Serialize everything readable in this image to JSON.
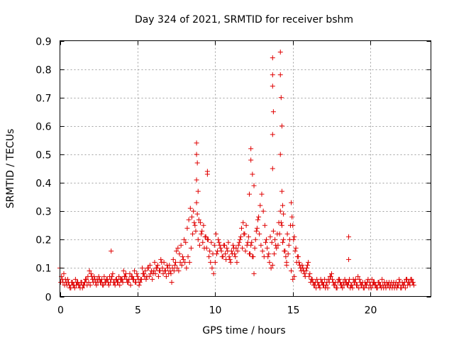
{
  "chart_data": {
    "type": "scatter",
    "title": "Day 324 of 2021, SRMTID for receiver bshm",
    "xlabel": "GPS time / hours",
    "ylabel": "SRMTID / TECUs",
    "xlim": [
      0,
      23.9
    ],
    "ylim": [
      0,
      0.9
    ],
    "xticks": [
      0,
      5,
      10,
      15,
      20
    ],
    "xtick_labels": [
      "0",
      "5",
      "10",
      "15",
      "20"
    ],
    "yticks": [
      0,
      0.1,
      0.2,
      0.3,
      0.4,
      0.5,
      0.6,
      0.7,
      0.8,
      0.9
    ],
    "ytick_labels": [
      "0",
      "0.1",
      "0.2",
      "0.3",
      "0.4",
      "0.5",
      "0.6",
      "0.7",
      "0.8",
      "0.9"
    ],
    "grid": true,
    "marker": "+",
    "color": "#e00000",
    "series": [
      {
        "name": "SRMTID",
        "x": [
          0.0,
          0.1,
          0.2,
          0.3,
          0.4,
          0.5,
          0.6,
          0.7,
          0.8,
          0.9,
          1.0,
          1.1,
          1.2,
          1.3,
          1.4,
          1.5,
          1.6,
          1.7,
          1.8,
          1.9,
          2.0,
          2.1,
          2.2,
          2.3,
          2.4,
          2.5,
          2.6,
          2.7,
          2.8,
          2.9,
          3.0,
          3.1,
          3.2,
          3.3,
          3.4,
          3.5,
          3.6,
          3.7,
          3.8,
          3.9,
          4.0,
          4.1,
          4.2,
          4.3,
          4.4,
          4.5,
          4.6,
          4.7,
          4.8,
          4.9,
          5.0,
          5.1,
          5.2,
          5.3,
          5.4,
          5.5,
          5.6,
          5.7,
          5.8,
          5.9,
          6.0,
          6.1,
          6.2,
          6.3,
          6.4,
          6.5,
          6.6,
          6.7,
          6.8,
          6.9,
          7.0,
          7.1,
          7.2,
          7.3,
          7.4,
          7.5,
          7.6,
          7.7,
          7.8,
          7.9,
          8.0,
          8.1,
          8.2,
          8.3,
          8.4,
          8.5,
          8.6,
          8.7,
          8.8,
          8.9,
          9.0,
          9.1,
          9.2,
          9.3,
          9.4,
          9.5,
          9.6,
          9.7,
          9.8,
          9.9,
          10.0,
          10.1,
          10.2,
          10.3,
          10.4,
          10.5,
          10.6,
          10.7,
          10.8,
          10.9,
          11.0,
          11.1,
          11.2,
          11.3,
          11.4,
          11.5,
          11.6,
          11.7,
          11.8,
          11.9,
          12.0,
          12.1,
          12.2,
          12.3,
          12.4,
          12.5,
          12.6,
          12.7,
          12.8,
          12.9,
          13.0,
          13.1,
          13.2,
          13.3,
          13.4,
          13.5,
          13.6,
          13.7,
          13.8,
          13.9,
          14.0,
          14.1,
          14.2,
          14.3,
          14.4,
          14.5,
          14.6,
          14.7,
          14.8,
          14.9,
          15.0,
          15.1,
          15.2,
          15.3,
          15.4,
          15.5,
          15.6,
          15.7,
          15.8,
          15.9,
          16.0,
          16.1,
          16.2,
          16.3,
          16.4,
          16.5,
          16.6,
          16.7,
          16.8,
          16.9,
          17.0,
          17.1,
          17.2,
          17.3,
          17.4,
          17.5,
          17.6,
          17.7,
          17.8,
          17.9,
          18.0,
          18.1,
          18.2,
          18.3,
          18.4,
          18.5,
          18.6,
          18.7,
          18.8,
          18.9,
          19.0,
          19.1,
          19.2,
          19.3,
          19.4,
          19.5,
          19.6,
          19.7,
          19.8,
          19.9,
          20.0,
          20.1,
          20.2,
          20.3,
          20.4,
          20.5,
          20.6,
          20.7,
          20.8,
          20.9,
          21.0,
          21.1,
          21.2,
          21.3,
          21.4,
          21.5,
          21.6,
          21.7,
          21.8,
          21.9,
          22.0,
          22.1,
          22.2,
          22.3,
          22.4,
          22.5,
          22.6,
          22.7,
          22.8,
          0.05,
          0.15,
          0.25,
          0.35,
          0.45,
          0.55,
          0.65,
          0.75,
          0.85,
          0.95,
          1.05,
          1.15,
          1.25,
          1.35,
          1.45,
          1.55,
          1.65,
          1.75,
          1.85,
          1.95,
          2.05,
          2.15,
          2.25,
          2.35,
          2.45,
          2.55,
          2.65,
          2.75,
          2.85,
          2.95,
          3.05,
          3.15,
          3.25,
          3.35,
          3.45,
          3.55,
          3.65,
          3.75,
          3.85,
          3.95,
          4.05,
          4.15,
          4.25,
          4.35,
          4.45,
          4.55,
          4.65,
          4.75,
          4.85,
          4.95,
          5.05,
          5.15,
          5.25,
          5.35,
          5.45,
          5.55,
          5.65,
          5.75,
          5.85,
          5.95,
          6.05,
          6.15,
          6.25,
          6.35,
          6.45,
          6.55,
          6.65,
          6.75,
          6.85,
          6.95,
          7.05,
          7.15,
          7.25,
          7.35,
          7.45,
          7.55,
          7.65,
          7.75,
          7.85,
          7.95,
          8.05,
          8.15,
          8.25,
          8.35,
          8.45,
          8.55,
          8.65,
          8.75,
          8.85,
          8.95,
          9.05,
          9.15,
          9.25,
          9.35,
          9.45,
          9.55,
          9.65,
          9.75,
          9.85,
          9.95,
          10.05,
          10.15,
          10.25,
          10.35,
          10.45,
          10.55,
          10.65,
          10.75,
          10.85,
          10.95,
          11.05,
          11.15,
          11.25,
          11.35,
          11.45,
          11.55,
          11.65,
          11.75,
          11.85,
          11.95,
          12.05,
          12.15,
          12.25,
          12.35,
          12.45,
          12.55,
          12.65,
          12.75,
          12.85,
          12.95,
          13.05,
          13.15,
          13.25,
          13.35,
          13.45,
          13.55,
          13.65,
          13.75,
          13.85,
          13.95,
          14.05,
          14.15,
          14.25,
          14.35,
          14.45,
          14.55,
          14.65,
          14.75,
          14.85,
          14.95,
          15.05,
          15.15,
          15.25,
          15.35,
          15.45,
          15.55,
          15.65,
          15.75,
          15.85,
          15.95,
          16.05,
          16.15,
          16.25,
          16.35,
          16.45,
          16.55,
          16.65,
          16.75,
          16.85,
          16.95,
          17.05,
          17.15,
          17.25,
          17.35,
          17.45,
          17.55,
          17.65,
          17.75,
          17.85,
          17.95,
          18.05,
          18.15,
          18.25,
          18.35,
          18.45,
          18.55,
          18.65,
          18.75,
          18.85,
          18.95,
          19.05,
          19.15,
          19.25,
          19.35,
          19.45,
          19.55,
          19.65,
          19.75,
          19.85,
          19.95,
          20.05,
          20.15,
          20.25,
          20.35,
          20.45,
          20.55,
          20.65,
          20.75,
          20.85,
          20.95,
          21.05,
          21.15,
          21.25,
          21.35,
          21.45,
          21.55,
          21.65,
          21.75,
          21.85,
          21.95,
          22.05,
          22.15,
          22.25,
          22.35,
          22.45,
          22.55,
          22.65,
          22.75,
          8.8,
          8.8,
          8.85,
          8.8,
          8.9,
          9.5,
          9.5,
          12.3,
          12.3,
          12.4,
          12.5,
          12.2,
          13.7,
          13.7,
          13.7,
          13.75,
          13.7,
          13.7,
          14.2,
          14.2,
          14.25,
          14.3,
          14.2,
          14.3,
          14.35,
          14.4,
          18.6,
          18.6,
          3.3,
          15.0,
          14.6,
          14.9,
          15.1
        ],
        "y": [
          0.1,
          0.07,
          0.05,
          0.04,
          0.05,
          0.06,
          0.04,
          0.03,
          0.05,
          0.04,
          0.06,
          0.05,
          0.04,
          0.03,
          0.05,
          0.04,
          0.05,
          0.06,
          0.07,
          0.09,
          0.08,
          0.06,
          0.07,
          0.05,
          0.06,
          0.07,
          0.05,
          0.06,
          0.04,
          0.05,
          0.06,
          0.05,
          0.07,
          0.06,
          0.08,
          0.05,
          0.06,
          0.05,
          0.07,
          0.06,
          0.06,
          0.09,
          0.07,
          0.06,
          0.05,
          0.08,
          0.07,
          0.06,
          0.09,
          0.05,
          0.07,
          0.04,
          0.06,
          0.1,
          0.08,
          0.09,
          0.07,
          0.1,
          0.11,
          0.09,
          0.08,
          0.12,
          0.1,
          0.11,
          0.09,
          0.13,
          0.1,
          0.12,
          0.09,
          0.11,
          0.08,
          0.09,
          0.05,
          0.13,
          0.11,
          0.16,
          0.17,
          0.15,
          0.18,
          0.14,
          0.2,
          0.19,
          0.24,
          0.27,
          0.31,
          0.28,
          0.3,
          0.25,
          0.33,
          0.2,
          0.18,
          0.22,
          0.19,
          0.17,
          0.21,
          0.2,
          0.14,
          0.12,
          0.1,
          0.08,
          0.12,
          0.15,
          0.2,
          0.18,
          0.16,
          0.14,
          0.18,
          0.13,
          0.16,
          0.14,
          0.12,
          0.15,
          0.17,
          0.14,
          0.12,
          0.18,
          0.2,
          0.24,
          0.26,
          0.22,
          0.25,
          0.19,
          0.15,
          0.18,
          0.14,
          0.08,
          0.2,
          0.24,
          0.28,
          0.32,
          0.36,
          0.3,
          0.25,
          0.2,
          0.14,
          0.12,
          0.1,
          0.11,
          0.15,
          0.18,
          0.22,
          0.26,
          0.3,
          0.25,
          0.2,
          0.16,
          0.12,
          0.15,
          0.2,
          0.33,
          0.25,
          0.21,
          0.17,
          0.14,
          0.12,
          0.1,
          0.11,
          0.09,
          0.07,
          0.1,
          0.12,
          0.08,
          0.06,
          0.05,
          0.04,
          0.03,
          0.05,
          0.04,
          0.06,
          0.05,
          0.04,
          0.03,
          0.05,
          0.06,
          0.07,
          0.08,
          0.05,
          0.04,
          0.03,
          0.05,
          0.06,
          0.04,
          0.03,
          0.04,
          0.05,
          0.04,
          0.05,
          0.03,
          0.04,
          0.06,
          0.05,
          0.04,
          0.07,
          0.06,
          0.04,
          0.05,
          0.03,
          0.04,
          0.05,
          0.03,
          0.04,
          0.06,
          0.05,
          0.04,
          0.03,
          0.05,
          0.04,
          0.03,
          0.04,
          0.05,
          0.03,
          0.04,
          0.05,
          0.04,
          0.03,
          0.05,
          0.04,
          0.03,
          0.04,
          0.05,
          0.03,
          0.04,
          0.05,
          0.06,
          0.04,
          0.05,
          0.06,
          0.05,
          0.04,
          0.05,
          0.06,
          0.08,
          0.06,
          0.04,
          0.05,
          0.03,
          0.05,
          0.04,
          0.03,
          0.04,
          0.05,
          0.04,
          0.05,
          0.03,
          0.04,
          0.06,
          0.04,
          0.05,
          0.04,
          0.07,
          0.05,
          0.06,
          0.04,
          0.05,
          0.06,
          0.05,
          0.04,
          0.07,
          0.05,
          0.06,
          0.04,
          0.05,
          0.07,
          0.05,
          0.04,
          0.06,
          0.05,
          0.04,
          0.06,
          0.05,
          0.07,
          0.08,
          0.05,
          0.06,
          0.04,
          0.07,
          0.06,
          0.05,
          0.08,
          0.06,
          0.05,
          0.06,
          0.08,
          0.07,
          0.06,
          0.1,
          0.07,
          0.08,
          0.06,
          0.09,
          0.08,
          0.1,
          0.07,
          0.09,
          0.12,
          0.08,
          0.09,
          0.07,
          0.1,
          0.11,
          0.08,
          0.1,
          0.09,
          0.12,
          0.1,
          0.09,
          0.12,
          0.11,
          0.13,
          0.12,
          0.1,
          0.14,
          0.12,
          0.17,
          0.22,
          0.26,
          0.23,
          0.29,
          0.27,
          0.26,
          0.23,
          0.25,
          0.21,
          0.17,
          0.2,
          0.16,
          0.19,
          0.15,
          0.18,
          0.22,
          0.16,
          0.19,
          0.17,
          0.14,
          0.18,
          0.15,
          0.17,
          0.19,
          0.13,
          0.16,
          0.18,
          0.15,
          0.17,
          0.16,
          0.19,
          0.21,
          0.17,
          0.22,
          0.16,
          0.18,
          0.21,
          0.15,
          0.19,
          0.14,
          0.17,
          0.23,
          0.27,
          0.22,
          0.18,
          0.16,
          0.14,
          0.19,
          0.17,
          0.15,
          0.21,
          0.19,
          0.23,
          0.2,
          0.17,
          0.18,
          0.22,
          0.26,
          0.19,
          0.16,
          0.14,
          0.22,
          0.18,
          0.25,
          0.28,
          0.2,
          0.16,
          0.12,
          0.14,
          0.11,
          0.09,
          0.1,
          0.08,
          0.09,
          0.11,
          0.07,
          0.05,
          0.06,
          0.04,
          0.05,
          0.06,
          0.04,
          0.03,
          0.05,
          0.04,
          0.06,
          0.04,
          0.03,
          0.05,
          0.07,
          0.06,
          0.04,
          0.05,
          0.03,
          0.06,
          0.05,
          0.04,
          0.05,
          0.06,
          0.05,
          0.04,
          0.06,
          0.04,
          0.03,
          0.05,
          0.06,
          0.04,
          0.03,
          0.05,
          0.04,
          0.03,
          0.05,
          0.04,
          0.06,
          0.05,
          0.03,
          0.04,
          0.05,
          0.04,
          0.03,
          0.05,
          0.04,
          0.06,
          0.03,
          0.04,
          0.05,
          0.04,
          0.03,
          0.05,
          0.04,
          0.03,
          0.05,
          0.04,
          0.06,
          0.03,
          0.05,
          0.04,
          0.03,
          0.06,
          0.05,
          0.04,
          0.06,
          0.05,
          0.54,
          0.5,
          0.47,
          0.41,
          0.37,
          0.44,
          0.43,
          0.52,
          0.48,
          0.43,
          0.39,
          0.36,
          0.84,
          0.78,
          0.74,
          0.65,
          0.57,
          0.45,
          0.86,
          0.78,
          0.7,
          0.6,
          0.5,
          0.37,
          0.32,
          0.29,
          0.21,
          0.13,
          0.16,
          0.06,
          0.11,
          0.09,
          0.07
        ]
      }
    ]
  }
}
